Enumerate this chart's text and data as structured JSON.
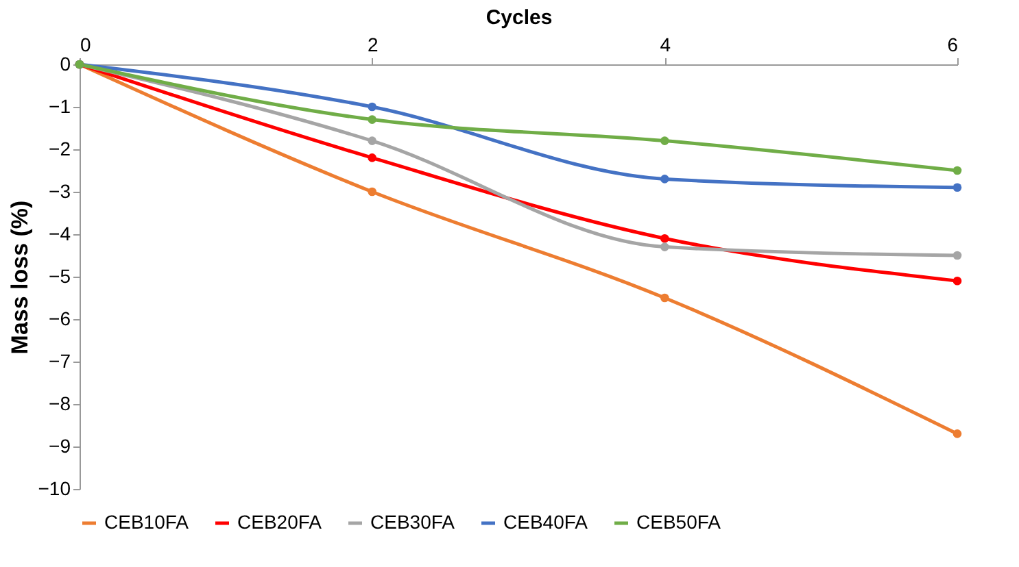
{
  "chart_data": {
    "type": "line",
    "xlabel": "Cycles",
    "ylabel": "Mass loss (%)",
    "x": [
      0,
      2,
      4,
      6
    ],
    "xlim": [
      0,
      6
    ],
    "xticks": [
      0,
      2,
      4,
      6
    ],
    "ylim": [
      -10,
      0
    ],
    "yticks": [
      -10,
      -9,
      -8,
      -7,
      -6,
      -5,
      -4,
      -3,
      -2,
      -1,
      0
    ],
    "series": [
      {
        "name": "CEB10FA",
        "color": "#ed7d31",
        "values": [
          0,
          -3,
          -5.5,
          -8.7
        ]
      },
      {
        "name": "CEB20FA",
        "color": "#ff0000",
        "values": [
          0,
          -2.2,
          -4.1,
          -5.1
        ]
      },
      {
        "name": "CEB30FA",
        "color": "#a5a5a5",
        "values": [
          0,
          -1.8,
          -4.3,
          -4.5
        ]
      },
      {
        "name": "CEB40FA",
        "color": "#4472c4",
        "values": [
          0,
          -1.0,
          -2.7,
          -2.9
        ]
      },
      {
        "name": "CEB50FA",
        "color": "#70ad47",
        "values": [
          0,
          -1.3,
          -1.8,
          -2.5
        ]
      }
    ],
    "grid": false,
    "legend": "bottom",
    "marker": "circle",
    "line_style": "solid"
  }
}
